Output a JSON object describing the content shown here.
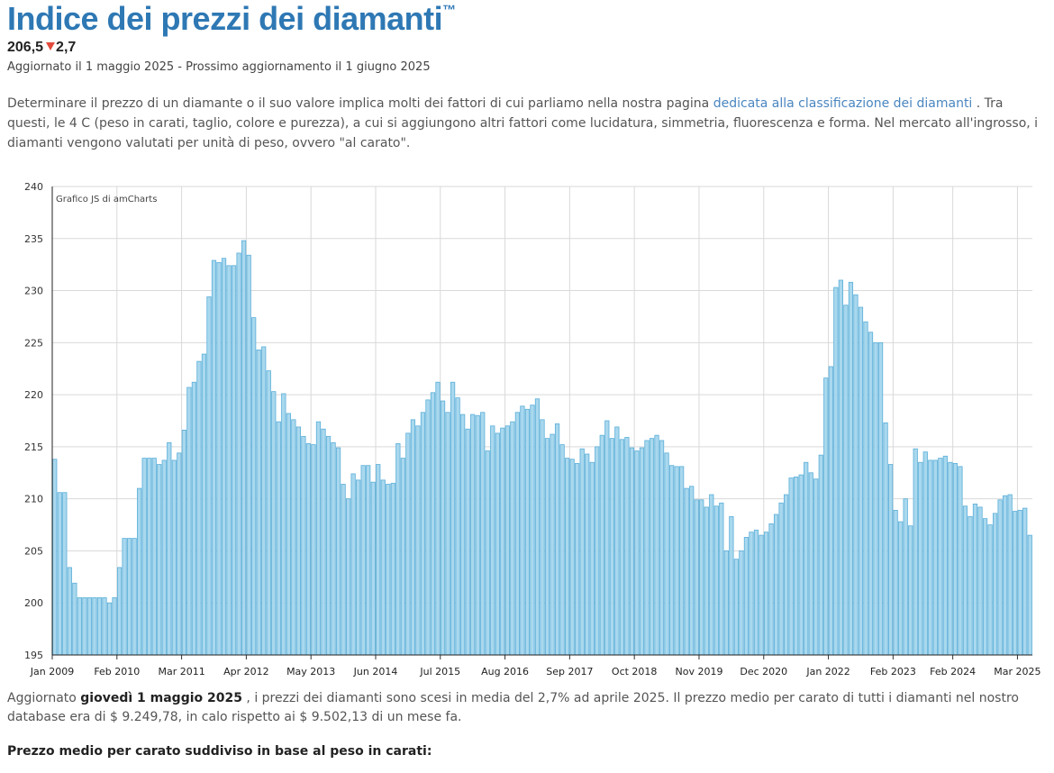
{
  "header": {
    "title": "Indice dei prezzi dei diamanti",
    "trademark": "™",
    "current_value": "206,5",
    "change": "2,7",
    "updated_text": "Aggiornato il 1 maggio 2025 - Prossimo aggiornamento il 1 giugno 2025"
  },
  "intro": {
    "text_before": "Determinare il prezzo di un diamante o il suo valore implica molti dei fattori di cui parliamo nella nostra pagina ",
    "link_text": "dedicata alla classificazione dei diamanti",
    "text_after": " . Tra questi, le 4 C (peso in carati, taglio, colore e purezza), a cui si aggiungono altri fattori come lucidatura, simmetria, fluorescenza e forma. Nel mercato all'ingrosso, i diamanti vengono valutati per unità di peso, ovvero \"al carato\"."
  },
  "summary": {
    "prefix": "Aggiornato ",
    "date": "giovedì 1 maggio 2025",
    "text": " , i prezzi dei diamanti sono scesi in media del 2,7% ad aprile 2025. Il prezzo medio per carato di tutti i diamanti nel nostro database era di $ 9.249,78, in calo rispetto ai $ 9.502,13 di un mese fa."
  },
  "subheading": "Prezzo medio per carato suddiviso in base al peso in carati:",
  "chart_data": {
    "type": "bar",
    "title": "",
    "credit": "Grafico JS di amCharts",
    "xlabel": "",
    "ylabel": "",
    "ylim": [
      195,
      240
    ],
    "yticks": [
      195,
      200,
      205,
      210,
      215,
      220,
      225,
      230,
      235,
      240
    ],
    "grid": true,
    "bar_color": "#a9d8ee",
    "bar_border": "#5aaed8",
    "x_tick_labels": [
      {
        "label": "Jan 2009",
        "index": 0
      },
      {
        "label": "Feb 2010",
        "index": 13
      },
      {
        "label": "Mar 2011",
        "index": 26
      },
      {
        "label": "Apr 2012",
        "index": 39
      },
      {
        "label": "May 2013",
        "index": 52
      },
      {
        "label": "Jun 2014",
        "index": 65
      },
      {
        "label": "Jul 2015",
        "index": 78
      },
      {
        "label": "Aug 2016",
        "index": 91
      },
      {
        "label": "Sep 2017",
        "index": 104
      },
      {
        "label": "Oct 2018",
        "index": 117
      },
      {
        "label": "Nov 2019",
        "index": 130
      },
      {
        "label": "Dec 2020",
        "index": 143
      },
      {
        "label": "Jan 2022",
        "index": 156
      },
      {
        "label": "Feb 2023",
        "index": 169
      },
      {
        "label": "Feb 2024",
        "index": 181
      },
      {
        "label": "Mar 2025",
        "index": 194
      }
    ],
    "start": "Jan 2009",
    "end": "May 2025",
    "frequency": "monthly",
    "values": [
      213.8,
      210.6,
      210.6,
      203.4,
      201.9,
      200.5,
      200.5,
      200.5,
      200.5,
      200.5,
      200.5,
      200.0,
      200.5,
      203.4,
      206.2,
      206.2,
      206.2,
      211.0,
      213.9,
      213.9,
      213.9,
      213.3,
      213.7,
      215.4,
      213.7,
      214.4,
      216.6,
      220.7,
      221.2,
      223.2,
      223.9,
      229.4,
      232.9,
      232.7,
      233.1,
      232.4,
      232.4,
      233.6,
      234.8,
      233.4,
      227.4,
      224.3,
      224.6,
      222.3,
      220.3,
      217.4,
      220.1,
      218.2,
      217.6,
      216.9,
      216.0,
      215.3,
      215.2,
      217.4,
      216.7,
      216.0,
      215.4,
      214.9,
      211.4,
      210.0,
      212.4,
      211.8,
      213.2,
      213.2,
      211.6,
      213.3,
      211.8,
      211.4,
      211.5,
      215.3,
      213.9,
      216.3,
      217.6,
      217.0,
      218.3,
      219.5,
      220.2,
      221.2,
      219.4,
      218.3,
      221.2,
      219.7,
      218.1,
      216.7,
      218.1,
      218.0,
      218.3,
      214.6,
      217.0,
      216.3,
      216.8,
      217.0,
      217.4,
      218.3,
      218.9,
      218.6,
      219.0,
      219.6,
      217.6,
      215.8,
      216.2,
      217.2,
      215.2,
      213.9,
      213.8,
      213.4,
      214.8,
      214.3,
      213.5,
      215.0,
      216.1,
      217.5,
      215.8,
      216.9,
      215.7,
      215.9,
      214.9,
      214.6,
      214.9,
      215.6,
      215.8,
      216.1,
      215.6,
      214.4,
      213.2,
      213.1,
      213.1,
      211.0,
      211.2,
      209.9,
      209.9,
      209.2,
      210.4,
      209.3,
      209.6,
      205.0,
      208.3,
      204.2,
      205.0,
      206.3,
      206.8,
      207.0,
      206.5,
      206.8,
      207.6,
      208.5,
      209.6,
      210.4,
      212.0,
      212.1,
      212.3,
      213.5,
      212.5,
      211.9,
      214.2,
      221.6,
      222.7,
      230.3,
      231.0,
      228.6,
      230.8,
      229.6,
      228.4,
      227.0,
      226.0,
      225.0,
      225.0,
      217.3,
      213.3,
      208.9,
      207.8,
      210.0,
      207.4,
      214.8,
      213.5,
      214.5,
      213.7,
      213.7,
      213.9,
      214.1,
      213.5,
      213.4,
      213.1,
      209.3,
      208.3,
      209.5,
      209.2,
      208.1,
      207.5,
      208.6,
      209.9,
      210.3,
      210.4,
      208.8,
      208.9,
      209.1,
      206.5
    ]
  }
}
